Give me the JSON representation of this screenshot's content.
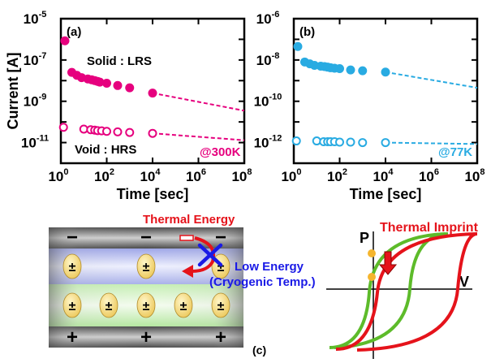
{
  "chart_data": [
    {
      "panel_label": "(a)",
      "type": "scatter",
      "ylabel": "Current [A]",
      "xlabel": "Time [sec]",
      "x_scale": "log",
      "y_scale": "log",
      "xlim": [
        1,
        100000000
      ],
      "ylim": [
        1e-12,
        1e-05
      ],
      "x_ticks": {
        "base": "10",
        "exponents": [
          "0",
          "2",
          "4",
          "6",
          "8"
        ]
      },
      "y_ticks": {
        "base": "10",
        "exponents": [
          "-5",
          "-7",
          "-9",
          "-11"
        ]
      },
      "temperature_label": "@300K",
      "color": "#e6007e",
      "series": [
        {
          "name": "Solid : LRS",
          "marker": "filled",
          "points": [
            [
              1.5,
              8.5e-07
            ],
            [
              3,
              2.5e-08
            ],
            [
              5,
              1.8e-08
            ],
            [
              8,
              1.4e-08
            ],
            [
              15,
              1.2e-08
            ],
            [
              22,
              1.1e-08
            ],
            [
              30,
              1e-08
            ],
            [
              40,
              9.2e-09
            ],
            [
              50,
              8.5e-09
            ],
            [
              100,
              7.5e-09
            ],
            [
              300,
              5.8e-09
            ],
            [
              1000,
              4.5e-09
            ],
            [
              10000,
              2.5e-09
            ]
          ],
          "fit": [
            [
              10000,
              2.5e-09
            ],
            [
              100000000,
              3.5e-10
            ]
          ]
        },
        {
          "name": "Void : HRS",
          "marker": "open",
          "points": [
            [
              1.3,
              5.5e-11
            ],
            [
              10,
              4.5e-11
            ],
            [
              20,
              4.2e-11
            ],
            [
              30,
              4e-11
            ],
            [
              40,
              3.8e-11
            ],
            [
              60,
              3.7e-11
            ],
            [
              100,
              3.5e-11
            ],
            [
              300,
              3.3e-11
            ],
            [
              1000,
              3.1e-11
            ],
            [
              10000,
              2.8e-11
            ]
          ],
          "fit": [
            [
              10000,
              2.8e-11
            ],
            [
              100000000,
              1.3e-11
            ]
          ]
        }
      ]
    },
    {
      "panel_label": "(b)",
      "type": "scatter",
      "xlabel": "Time [sec]",
      "x_scale": "log",
      "y_scale": "log",
      "xlim": [
        1,
        100000000
      ],
      "ylim": [
        1e-13,
        1e-06
      ],
      "x_ticks": {
        "base": "10",
        "exponents": [
          "0",
          "2",
          "4",
          "6",
          "8"
        ]
      },
      "y_ticks": {
        "base": "10",
        "exponents": [
          "-6",
          "-8",
          "-10",
          "-12"
        ]
      },
      "temperature_label": "@77K",
      "color": "#29abe2",
      "series": [
        {
          "name": "LRS",
          "marker": "filled",
          "points": [
            [
              1.5,
              4.5e-08
            ],
            [
              3,
              8e-09
            ],
            [
              5,
              6.5e-09
            ],
            [
              8,
              5.5e-09
            ],
            [
              15,
              5e-09
            ],
            [
              22,
              4.8e-09
            ],
            [
              30,
              4.5e-09
            ],
            [
              40,
              4.2e-09
            ],
            [
              60,
              4e-09
            ],
            [
              100,
              3.8e-09
            ],
            [
              300,
              3.3e-09
            ],
            [
              1000,
              3e-09
            ],
            [
              10000,
              2.6e-09
            ]
          ],
          "fit": [
            [
              10000,
              2.6e-09
            ],
            [
              100000000,
              4.5e-10
            ]
          ]
        },
        {
          "name": "HRS",
          "marker": "open",
          "points": [
            [
              1.3,
              1.2e-12
            ],
            [
              10,
              1.2e-12
            ],
            [
              20,
              1.1e-12
            ],
            [
              30,
              1.1e-12
            ],
            [
              40,
              1.1e-12
            ],
            [
              60,
              1.1e-12
            ],
            [
              100,
              1.05e-12
            ],
            [
              300,
              1.05e-12
            ],
            [
              1000,
              1e-12
            ],
            [
              10000,
              1e-12
            ]
          ],
          "fit": [
            [
              10000,
              1e-12
            ],
            [
              100000000,
              8.5e-13
            ]
          ]
        }
      ]
    }
  ],
  "panel_a": {
    "letter": "(a)",
    "solid_label": "Solid : LRS",
    "void_label": "Void : HRS",
    "temp": "@300K",
    "ylabel": "Current [A]",
    "xlabel": "Time [sec]"
  },
  "panel_b": {
    "letter": "(b)",
    "temp": "@77K",
    "xlabel": "Time [sec]"
  },
  "panel_c": {
    "letter": "(c)",
    "thermal_energy": "Thermal Energy",
    "low_energy": "Low Energy",
    "cryogenic": "(Cryogenic Temp.)",
    "thermal_imprint": "Thermal Imprint",
    "axis_p": "P",
    "axis_v": "V",
    "minus": "−",
    "plus": "+",
    "dipole": "±"
  }
}
